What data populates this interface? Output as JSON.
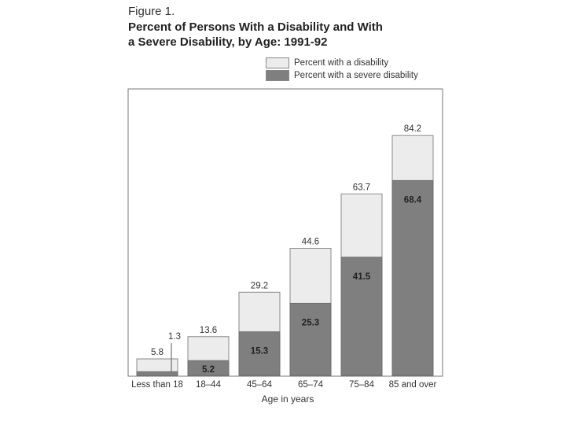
{
  "figure_label": "Figure 1.",
  "title_lines": [
    "Percent of Persons With a Disability and With",
    "a Severe Disability, by Age:  1991-92"
  ],
  "colors": {
    "disability": "#ececec",
    "severe": "#7f7f7f",
    "frame": "#777777",
    "text": "#333333"
  },
  "chart_data": {
    "type": "bar",
    "title": "Percent of Persons With a Disability and With a Severe Disability, by Age: 1991-92",
    "xlabel": "Age in years",
    "ylabel": "",
    "ylim": [
      0,
      100
    ],
    "categories": [
      "Less than 18",
      "18–44",
      "45–64",
      "65–74",
      "75–84",
      "85 and over"
    ],
    "series": [
      {
        "name": "Percent with a disability",
        "values": [
          5.8,
          13.6,
          29.2,
          44.6,
          63.7,
          84.2
        ],
        "labels": [
          "5.8",
          "13.6",
          "29.2",
          "44.6",
          "63.7",
          "84.2"
        ]
      },
      {
        "name": "Percent with a severe disability",
        "values": [
          1.3,
          5.2,
          15.3,
          25.3,
          41.5,
          68.4
        ],
        "labels": [
          "1.3",
          "5.2",
          "15.3",
          "25.3",
          "41.5",
          "68.4"
        ]
      }
    ]
  }
}
